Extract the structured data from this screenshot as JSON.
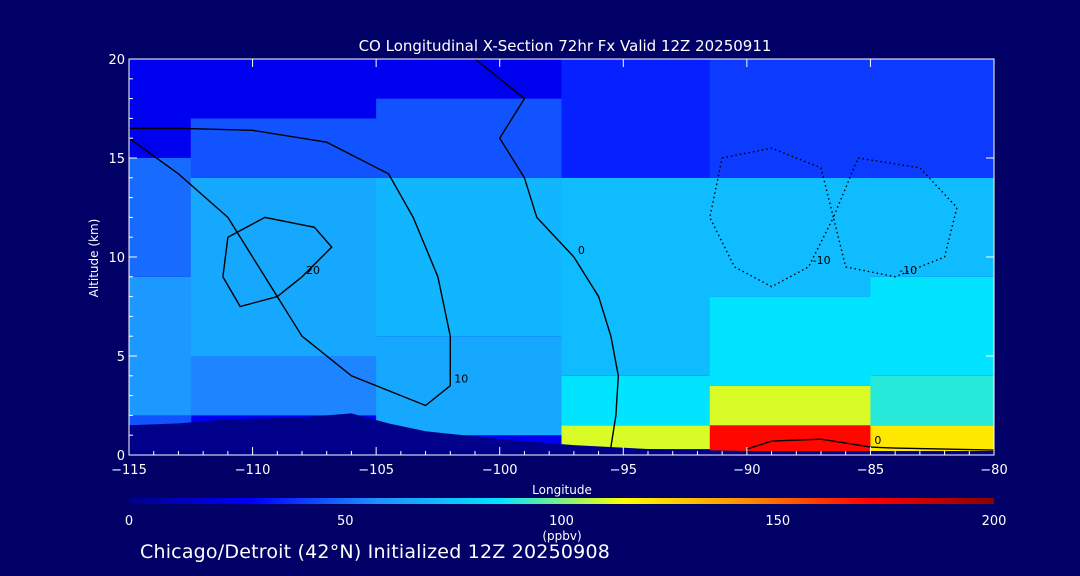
{
  "chart_data": {
    "type": "heatmap",
    "title": "CO Longitudinal X-Section 72hr  Fx Valid 12Z 20250911",
    "xlabel": "Longitude",
    "ylabel": "Altitude (km)",
    "xlim": [
      -115,
      -80
    ],
    "ylim": [
      0,
      20
    ],
    "x_ticks": [
      -115,
      -110,
      -105,
      -100,
      -95,
      -90,
      -85,
      -80
    ],
    "x_tick_labels": [
      "−115",
      "−110",
      "−105",
      "−100",
      "−95",
      "−90",
      "−85",
      "−80"
    ],
    "y_ticks": [
      0,
      5,
      10,
      15,
      20
    ],
    "y_tick_labels": [
      "0",
      "5",
      "10",
      "15",
      "20"
    ],
    "colorbar": {
      "min": 0,
      "max": 200,
      "unit": "(ppbv)",
      "ticks": [
        0,
        50,
        100,
        150,
        200
      ],
      "tick_labels": [
        "0",
        "50",
        "100",
        "150",
        "200"
      ],
      "colors": [
        "#00008b",
        "#0000ff",
        "#1e90ff",
        "#00e5ff",
        "#ffff00",
        "#ff8c00",
        "#ff0000",
        "#8b0000"
      ]
    },
    "terrain": [
      [
        -115,
        1.5
      ],
      [
        -113,
        1.6
      ],
      [
        -111,
        1.8
      ],
      [
        -108,
        1.9
      ],
      [
        -106,
        2.1
      ],
      [
        -104.5,
        1.6
      ],
      [
        -103,
        1.2
      ],
      [
        -100,
        0.8
      ],
      [
        -97,
        0.5
      ],
      [
        -94,
        0.3
      ],
      [
        -90,
        0.2
      ],
      [
        -85,
        0.2
      ],
      [
        -80,
        0.2
      ]
    ],
    "field_levels": [
      {
        "x": -115,
        "bands": [
          [
            0,
            2,
            45
          ],
          [
            2,
            9,
            60
          ],
          [
            9,
            15,
            50
          ],
          [
            15,
            20,
            25
          ]
        ]
      },
      {
        "x": -110,
        "bands": [
          [
            2,
            5,
            55
          ],
          [
            5,
            14,
            65
          ],
          [
            14,
            17,
            45
          ],
          [
            17,
            20,
            25
          ]
        ]
      },
      {
        "x": -100,
        "bands": [
          [
            1,
            6,
            65
          ],
          [
            6,
            14,
            70
          ],
          [
            14,
            18,
            45
          ],
          [
            18,
            20,
            25
          ]
        ]
      },
      {
        "x": -95,
        "bands": [
          [
            0.3,
            1.5,
            110
          ],
          [
            1.5,
            4,
            85
          ],
          [
            4,
            14,
            72
          ],
          [
            14,
            20,
            35
          ]
        ]
      },
      {
        "x": -88,
        "bands": [
          [
            0.2,
            1.5,
            170
          ],
          [
            1.5,
            3.5,
            110
          ],
          [
            3.5,
            8,
            85
          ],
          [
            8,
            14,
            72
          ],
          [
            14,
            20,
            40
          ]
        ]
      },
      {
        "x": -82,
        "bands": [
          [
            0.2,
            1.5,
            120
          ],
          [
            1.5,
            4,
            90
          ],
          [
            4,
            9,
            85
          ],
          [
            9,
            14,
            72
          ],
          [
            14,
            20,
            40
          ]
        ]
      }
    ],
    "contours": [
      {
        "level": 0,
        "label": "0",
        "style": "solid",
        "points": [
          [
            -101,
            20
          ],
          [
            -99,
            18
          ],
          [
            -100,
            16
          ],
          [
            -99,
            14
          ],
          [
            -98.5,
            12
          ],
          [
            -97,
            10
          ],
          [
            -96,
            8
          ],
          [
            -95.5,
            6
          ],
          [
            -95.2,
            4
          ],
          [
            -95.3,
            2
          ],
          [
            -95.5,
            0.4
          ]
        ]
      },
      {
        "level": 0,
        "label": "0",
        "style": "solid",
        "points": [
          [
            -90,
            0.3
          ],
          [
            -89,
            0.7
          ],
          [
            -87,
            0.8
          ],
          [
            -86,
            0.6
          ],
          [
            -85,
            0.4
          ],
          [
            -84,
            0.35
          ],
          [
            -82,
            0.3
          ],
          [
            -80,
            0.25
          ]
        ]
      },
      {
        "level": 10,
        "label": "10",
        "style": "solid",
        "points": [
          [
            -115,
            16
          ],
          [
            -113,
            14.2
          ],
          [
            -111,
            12
          ],
          [
            -109.5,
            9
          ],
          [
            -108,
            6
          ],
          [
            -106,
            4
          ],
          [
            -104,
            3
          ],
          [
            -103,
            2.5
          ],
          [
            -102,
            3.5
          ],
          [
            -102,
            6
          ],
          [
            -102.5,
            9
          ],
          [
            -103.5,
            12
          ],
          [
            -104.5,
            14.2
          ],
          [
            -107,
            15.8
          ],
          [
            -110,
            16.4
          ],
          [
            -113,
            16.5
          ],
          [
            -115,
            16.5
          ]
        ]
      },
      {
        "level": 20,
        "label": "20",
        "style": "solid",
        "points": [
          [
            -111,
            11
          ],
          [
            -109.5,
            12
          ],
          [
            -107.5,
            11.5
          ],
          [
            -106.8,
            10.5
          ],
          [
            -108,
            9
          ],
          [
            -109,
            8
          ],
          [
            -110.5,
            7.5
          ],
          [
            -111.2,
            9
          ],
          [
            -111,
            11
          ]
        ]
      },
      {
        "level": -10,
        "label": "-10",
        "style": "dotted",
        "points": [
          [
            -91,
            15
          ],
          [
            -89,
            15.5
          ],
          [
            -87,
            14.5
          ],
          [
            -86.5,
            12
          ],
          [
            -87.5,
            9.5
          ],
          [
            -89,
            8.5
          ],
          [
            -90.5,
            9.5
          ],
          [
            -91.5,
            12
          ],
          [
            -91,
            15
          ]
        ]
      },
      {
        "level": -10,
        "label": "-10",
        "style": "dotted",
        "points": [
          [
            -85.5,
            15
          ],
          [
            -83,
            14.5
          ],
          [
            -81.5,
            12.5
          ],
          [
            -82,
            10
          ],
          [
            -84,
            9
          ],
          [
            -86,
            9.5
          ],
          [
            -86.5,
            12
          ],
          [
            -85.5,
            15
          ]
        ]
      }
    ]
  },
  "footer": {
    "text": "Chicago/Detroit (42°N) Initialized 12Z 20250908"
  }
}
